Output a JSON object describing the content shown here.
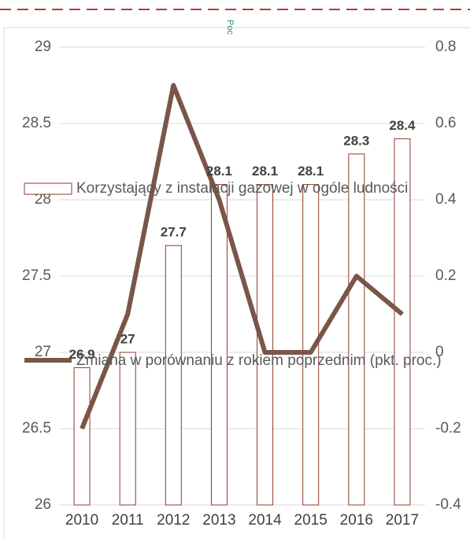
{
  "chart_data": {
    "type": "bar-line",
    "caption": "Poc",
    "categories": [
      "2010",
      "2011",
      "2012",
      "2013",
      "2014",
      "2015",
      "2016",
      "2017"
    ],
    "series": [
      {
        "name": "Korzystający z instalacji gazowej w ogóle ludności",
        "type": "bar",
        "color": "#8c3b2c",
        "values": [
          26.9,
          27,
          27.7,
          28.1,
          28.1,
          28.1,
          28.3,
          28.4
        ]
      },
      {
        "name": "Zmiana w porównaniu z rokiem poprzednim (pkt. proc.)",
        "type": "line",
        "axis": "y2",
        "color": "#7a5548",
        "values": [
          -0.2,
          0.1,
          0.7,
          0.4,
          0,
          0,
          0.2,
          0.1
        ]
      }
    ],
    "ylim": [
      26,
      29
    ],
    "yticks": [
      26,
      26.5,
      27,
      27.5,
      28,
      28.5,
      29
    ],
    "y2lim": [
      -0.4,
      0.8
    ],
    "y2ticks": [
      -0.4,
      -0.2,
      0,
      0.2,
      0.4,
      0.6,
      0.8
    ],
    "grid": true
  }
}
